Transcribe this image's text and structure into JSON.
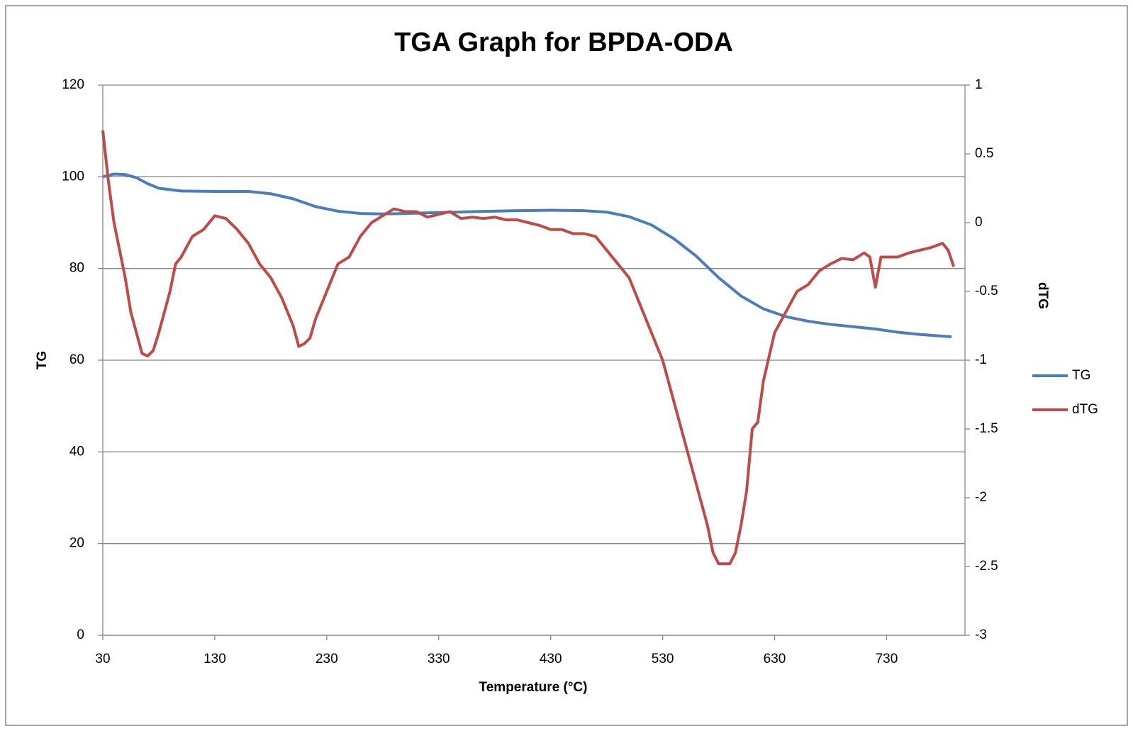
{
  "chart_data": {
    "type": "line",
    "title": "TGA Graph for BPDA-ODA",
    "x_label": "Temperature (°C)",
    "y_label": "TG",
    "y2_label": "dTG",
    "xlim": [
      30,
      800
    ],
    "xticks": [
      30,
      130,
      230,
      330,
      430,
      530,
      630,
      730
    ],
    "ylim": [
      0,
      120
    ],
    "yticks": [
      0,
      20,
      40,
      60,
      80,
      100,
      120
    ],
    "y2lim": [
      -3,
      1
    ],
    "y2ticks": [
      -3,
      -2.5,
      -2,
      -1.5,
      -1,
      -0.5,
      0,
      0.5,
      1
    ],
    "grid": true,
    "legend": "right",
    "series": [
      {
        "name": "TG",
        "color": "#4a7ebb",
        "axis": "y",
        "x": [
          30,
          40,
          50,
          60,
          70,
          80,
          100,
          130,
          160,
          180,
          200,
          220,
          240,
          260,
          280,
          300,
          330,
          360,
          400,
          430,
          460,
          480,
          500,
          520,
          540,
          560,
          580,
          600,
          620,
          640,
          660,
          680,
          700,
          720,
          740,
          760,
          788
        ],
        "values": [
          100,
          100.6,
          100.5,
          99.8,
          98.5,
          97.5,
          96.9,
          96.8,
          96.8,
          96.3,
          95.2,
          93.5,
          92.5,
          92,
          91.9,
          92,
          92.2,
          92.4,
          92.6,
          92.7,
          92.6,
          92.3,
          91.3,
          89.5,
          86.5,
          82.7,
          78,
          74,
          71.2,
          69.5,
          68.5,
          67.8,
          67.3,
          66.8,
          66.1,
          65.6,
          65.1
        ]
      },
      {
        "name": "dTG",
        "color": "#be4b48",
        "axis": "y2",
        "x": [
          30,
          35,
          40,
          45,
          50,
          55,
          60,
          65,
          70,
          75,
          80,
          85,
          90,
          95,
          100,
          110,
          120,
          130,
          140,
          150,
          160,
          170,
          180,
          190,
          200,
          205,
          210,
          215,
          220,
          230,
          240,
          250,
          260,
          270,
          280,
          290,
          300,
          310,
          320,
          330,
          340,
          350,
          360,
          370,
          380,
          390,
          400,
          410,
          420,
          430,
          440,
          450,
          460,
          470,
          480,
          490,
          500,
          510,
          520,
          530,
          540,
          550,
          560,
          570,
          575,
          580,
          590,
          595,
          600,
          605,
          610,
          615,
          620,
          630,
          640,
          650,
          660,
          670,
          680,
          690,
          700,
          710,
          715,
          720,
          725,
          730,
          740,
          750,
          760,
          770,
          780,
          785,
          790
        ],
        "values": [
          0.67,
          0.3,
          0.0,
          -0.2,
          -0.4,
          -0.65,
          -0.8,
          -0.95,
          -0.97,
          -0.93,
          -0.8,
          -0.65,
          -0.5,
          -0.3,
          -0.25,
          -0.1,
          -0.05,
          0.05,
          0.03,
          -0.05,
          -0.15,
          -0.3,
          -0.4,
          -0.55,
          -0.75,
          -0.9,
          -0.88,
          -0.84,
          -0.7,
          -0.5,
          -0.3,
          -0.25,
          -0.1,
          0.0,
          0.05,
          0.1,
          0.08,
          0.08,
          0.04,
          0.06,
          0.08,
          0.03,
          0.04,
          0.03,
          0.04,
          0.02,
          0.02,
          0.0,
          -0.02,
          -0.05,
          -0.05,
          -0.08,
          -0.08,
          -0.1,
          -0.2,
          -0.3,
          -0.4,
          -0.6,
          -0.8,
          -1.0,
          -1.3,
          -1.6,
          -1.9,
          -2.2,
          -2.4,
          -2.48,
          -2.48,
          -2.4,
          -2.2,
          -1.95,
          -1.5,
          -1.45,
          -1.15,
          -0.8,
          -0.65,
          -0.5,
          -0.45,
          -0.35,
          -0.3,
          -0.26,
          -0.27,
          -0.22,
          -0.25,
          -0.47,
          -0.25,
          -0.25,
          -0.25,
          -0.22,
          -0.2,
          -0.18,
          -0.15,
          -0.2,
          -0.32
        ]
      }
    ]
  }
}
